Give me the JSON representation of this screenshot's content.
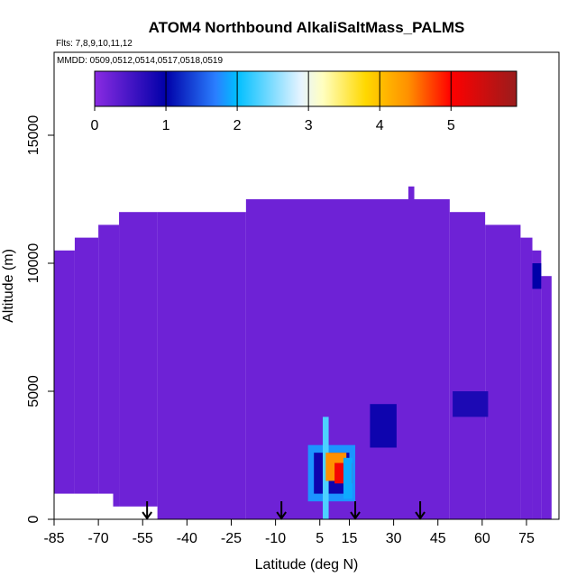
{
  "chart_data": {
    "type": "curtain",
    "title": "ATOM4 Northbound AlkaliSaltMass_PALMS",
    "flights": "Flts: 7,8,9,10,11,12",
    "dates": "MMDD: 0509,0512,0514,0517,0518,0519",
    "xlabel": "Latitude (deg N)",
    "ylabel": "Altitude (m)",
    "xlim": [
      -85,
      86
    ],
    "ylim": [
      0,
      18240
    ],
    "xticks": [
      -85,
      -70,
      -55,
      -40,
      -25,
      -10,
      5,
      15,
      30,
      45,
      60,
      75
    ],
    "yticks": [
      0,
      5000,
      10000,
      15000
    ],
    "clim": [
      0,
      5.92
    ],
    "cticks": [
      0,
      1,
      2,
      3,
      4,
      5
    ],
    "colorscale": [
      [
        0,
        "#8a2be2"
      ],
      [
        1,
        "#0000a8"
      ],
      [
        1.7,
        "#2a7fff"
      ],
      [
        2,
        "#00bfff"
      ],
      [
        2.9,
        "#e8f4ff"
      ],
      [
        3.2,
        "#ffffc0"
      ],
      [
        3.8,
        "#ffd800"
      ],
      [
        4.4,
        "#ff9000"
      ],
      [
        5,
        "#ff0000"
      ],
      [
        5.92,
        "#9a1c1c"
      ]
    ],
    "flight_markers": [
      -53.5,
      -8,
      17,
      39
    ],
    "cells": [
      [
        -85,
        -78,
        1000,
        10500,
        0.2
      ],
      [
        -78,
        -70,
        1000,
        11000,
        0.2
      ],
      [
        -70,
        -65,
        1000,
        11500,
        0.2
      ],
      [
        -65,
        -63,
        500,
        11500,
        0.2
      ],
      [
        -63,
        -50,
        500,
        12000,
        0.2
      ],
      [
        -50,
        -20,
        0,
        12000,
        0.2
      ],
      [
        -20,
        49,
        0,
        12500,
        0.2
      ],
      [
        49,
        61,
        0,
        12000,
        0.2
      ],
      [
        61,
        73,
        0,
        11500,
        0.2
      ],
      [
        73,
        77,
        0,
        11000,
        0.2
      ],
      [
        77,
        80,
        0,
        10500,
        0.2
      ],
      [
        80,
        83.5,
        0,
        9500,
        0.2
      ],
      [
        35,
        37,
        12500,
        13000,
        0.2
      ],
      [
        22,
        31,
        2800,
        4500,
        0.9
      ],
      [
        50,
        62,
        4000,
        5000,
        0.8
      ],
      [
        77,
        80,
        9000,
        10000,
        1.0
      ],
      [
        1,
        17,
        700,
        2900,
        1.8
      ],
      [
        3,
        15,
        1000,
        2600,
        0.9
      ],
      [
        6,
        8,
        0,
        4000,
        2.3
      ],
      [
        7,
        14,
        1500,
        2600,
        4.4
      ],
      [
        10,
        16,
        1400,
        2200,
        5.1
      ],
      [
        13,
        16,
        800,
        2400,
        1.9
      ]
    ]
  }
}
